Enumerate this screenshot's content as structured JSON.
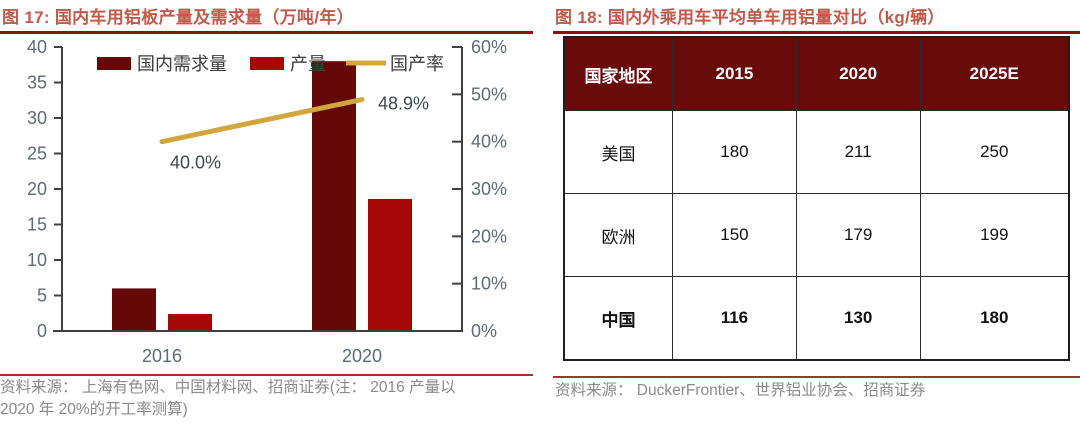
{
  "left_panel": {
    "title": "图 17:  国内车用铝板产量及需求量（万吨/年）",
    "source_line1": "资料来源： 上海有色网、中国材料网、招商证券(注： 2016 产量以",
    "source_line2": "2020 年 20%的开工率测算)"
  },
  "right_panel": {
    "title": "图 18:  国内外乘用车平均单车用铝量对比（kg/辆）",
    "source": "资料来源： DuckerFrontier、世界铝业协会、招商证券"
  },
  "chart_data": [
    {
      "type": "bar",
      "title": "国内车用铝板产量及需求量（万吨/年）",
      "categories": [
        "2016",
        "2020"
      ],
      "series": [
        {
          "name": "国内需求量",
          "kind": "bar",
          "axis": "left",
          "values": [
            6,
            38
          ],
          "color": "#640808"
        },
        {
          "name": "产量",
          "kind": "bar",
          "axis": "left",
          "values": [
            2.4,
            18.6
          ],
          "color": "#a60808"
        },
        {
          "name": "国产率",
          "kind": "line",
          "axis": "right",
          "values": [
            40.0,
            48.9
          ],
          "color": "#d1a63e"
        }
      ],
      "left_axis": {
        "min": 0,
        "max": 40,
        "step": 5,
        "suffix": ""
      },
      "right_axis": {
        "min": 0,
        "max": 60,
        "step": 10,
        "suffix": "%"
      },
      "annotations": [
        {
          "series": 2,
          "point": 0,
          "label": "40.0%"
        },
        {
          "series": 2,
          "point": 1,
          "label": "48.9%"
        }
      ],
      "legend_position": "top",
      "grid": false
    },
    {
      "type": "table",
      "title": "国内外乘用车平均单车用铝量对比（kg/辆）",
      "headers": [
        "国家地区",
        "2015",
        "2020",
        "2025E"
      ],
      "rows": [
        [
          "美国",
          "180",
          "211",
          "250"
        ],
        [
          "欧洲",
          "150",
          "179",
          "199"
        ],
        [
          "中国",
          "116",
          "130",
          "180"
        ]
      ],
      "emphasis_row": 2
    }
  ],
  "colors": {
    "title": "#c15a4b",
    "title_rule": "#8e100e",
    "source_rule": "#a2342b",
    "source_text": "#8a8a8a",
    "table_header_bg": "#6a0b0b",
    "axis_line": "#3f3f3f",
    "axis_label": "#5f6b76",
    "legend_text": "#3c3c3c",
    "annotation_text": "#3f4750"
  }
}
